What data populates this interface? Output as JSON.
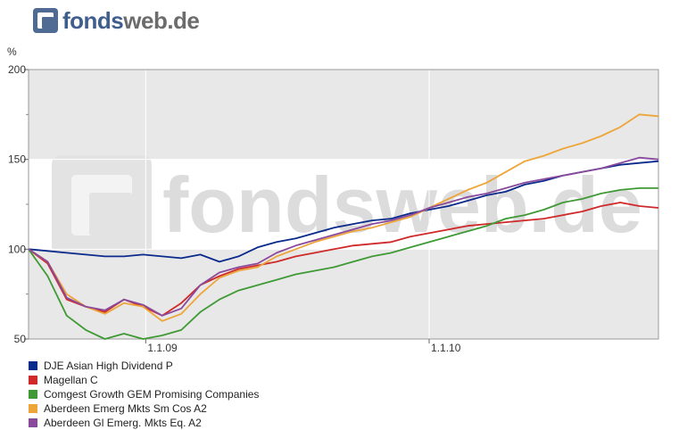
{
  "header": {
    "logo_part1": "fonds",
    "logo_part2": "web.de"
  },
  "watermark": "fondsweb.de",
  "chart_data": {
    "type": "line",
    "ylabel": "%",
    "ylim": [
      50,
      200
    ],
    "yticks": [
      50,
      100,
      150,
      200
    ],
    "xticks": [
      {
        "label": "1.1.09",
        "t": 0.186
      },
      {
        "label": "1.1.10",
        "t": 0.636
      }
    ],
    "grid": true,
    "legend_placement": "bottom",
    "series": [
      {
        "name": "DJE Asian High Dividend P",
        "color": "#0a2a8c",
        "values": [
          100,
          99,
          98,
          97,
          96,
          96,
          97,
          96,
          95,
          97,
          93,
          96,
          101,
          104,
          106,
          109,
          112,
          114,
          116,
          117,
          120,
          122,
          124,
          127,
          130,
          132,
          136,
          138,
          141,
          143,
          145,
          147,
          148,
          149
        ]
      },
      {
        "name": "Magellan C",
        "color": "#d02929",
        "values": [
          100,
          92,
          72,
          68,
          65,
          72,
          68,
          63,
          70,
          80,
          85,
          89,
          91,
          93,
          96,
          98,
          100,
          102,
          103,
          104,
          107,
          109,
          111,
          113,
          114,
          115,
          116,
          117,
          119,
          121,
          124,
          126,
          124,
          123
        ]
      },
      {
        "name": "Comgest Growth GEM Promising Companies",
        "color": "#3f9a35",
        "values": [
          100,
          85,
          63,
          55,
          50,
          53,
          50,
          52,
          55,
          65,
          72,
          77,
          80,
          83,
          86,
          88,
          90,
          93,
          96,
          98,
          101,
          104,
          107,
          110,
          113,
          117,
          119,
          122,
          126,
          128,
          131,
          133,
          134,
          134
        ]
      },
      {
        "name": "Aberdeen Emerg Mkts Sm Cos A2",
        "color": "#eda53a",
        "values": [
          100,
          93,
          75,
          68,
          64,
          70,
          68,
          60,
          64,
          75,
          84,
          88,
          90,
          96,
          100,
          104,
          107,
          110,
          112,
          115,
          118,
          123,
          128,
          133,
          137,
          143,
          149,
          152,
          156,
          159,
          163,
          168,
          175,
          174
        ]
      },
      {
        "name": "Aberdeen Gl Emerg. Mkts Eq. A2",
        "color": "#8a4a9c",
        "values": [
          100,
          93,
          73,
          68,
          66,
          72,
          69,
          63,
          67,
          80,
          87,
          90,
          92,
          98,
          102,
          105,
          108,
          111,
          114,
          116,
          119,
          123,
          126,
          129,
          131,
          134,
          137,
          139,
          141,
          143,
          145,
          148,
          151,
          150
        ]
      }
    ]
  }
}
